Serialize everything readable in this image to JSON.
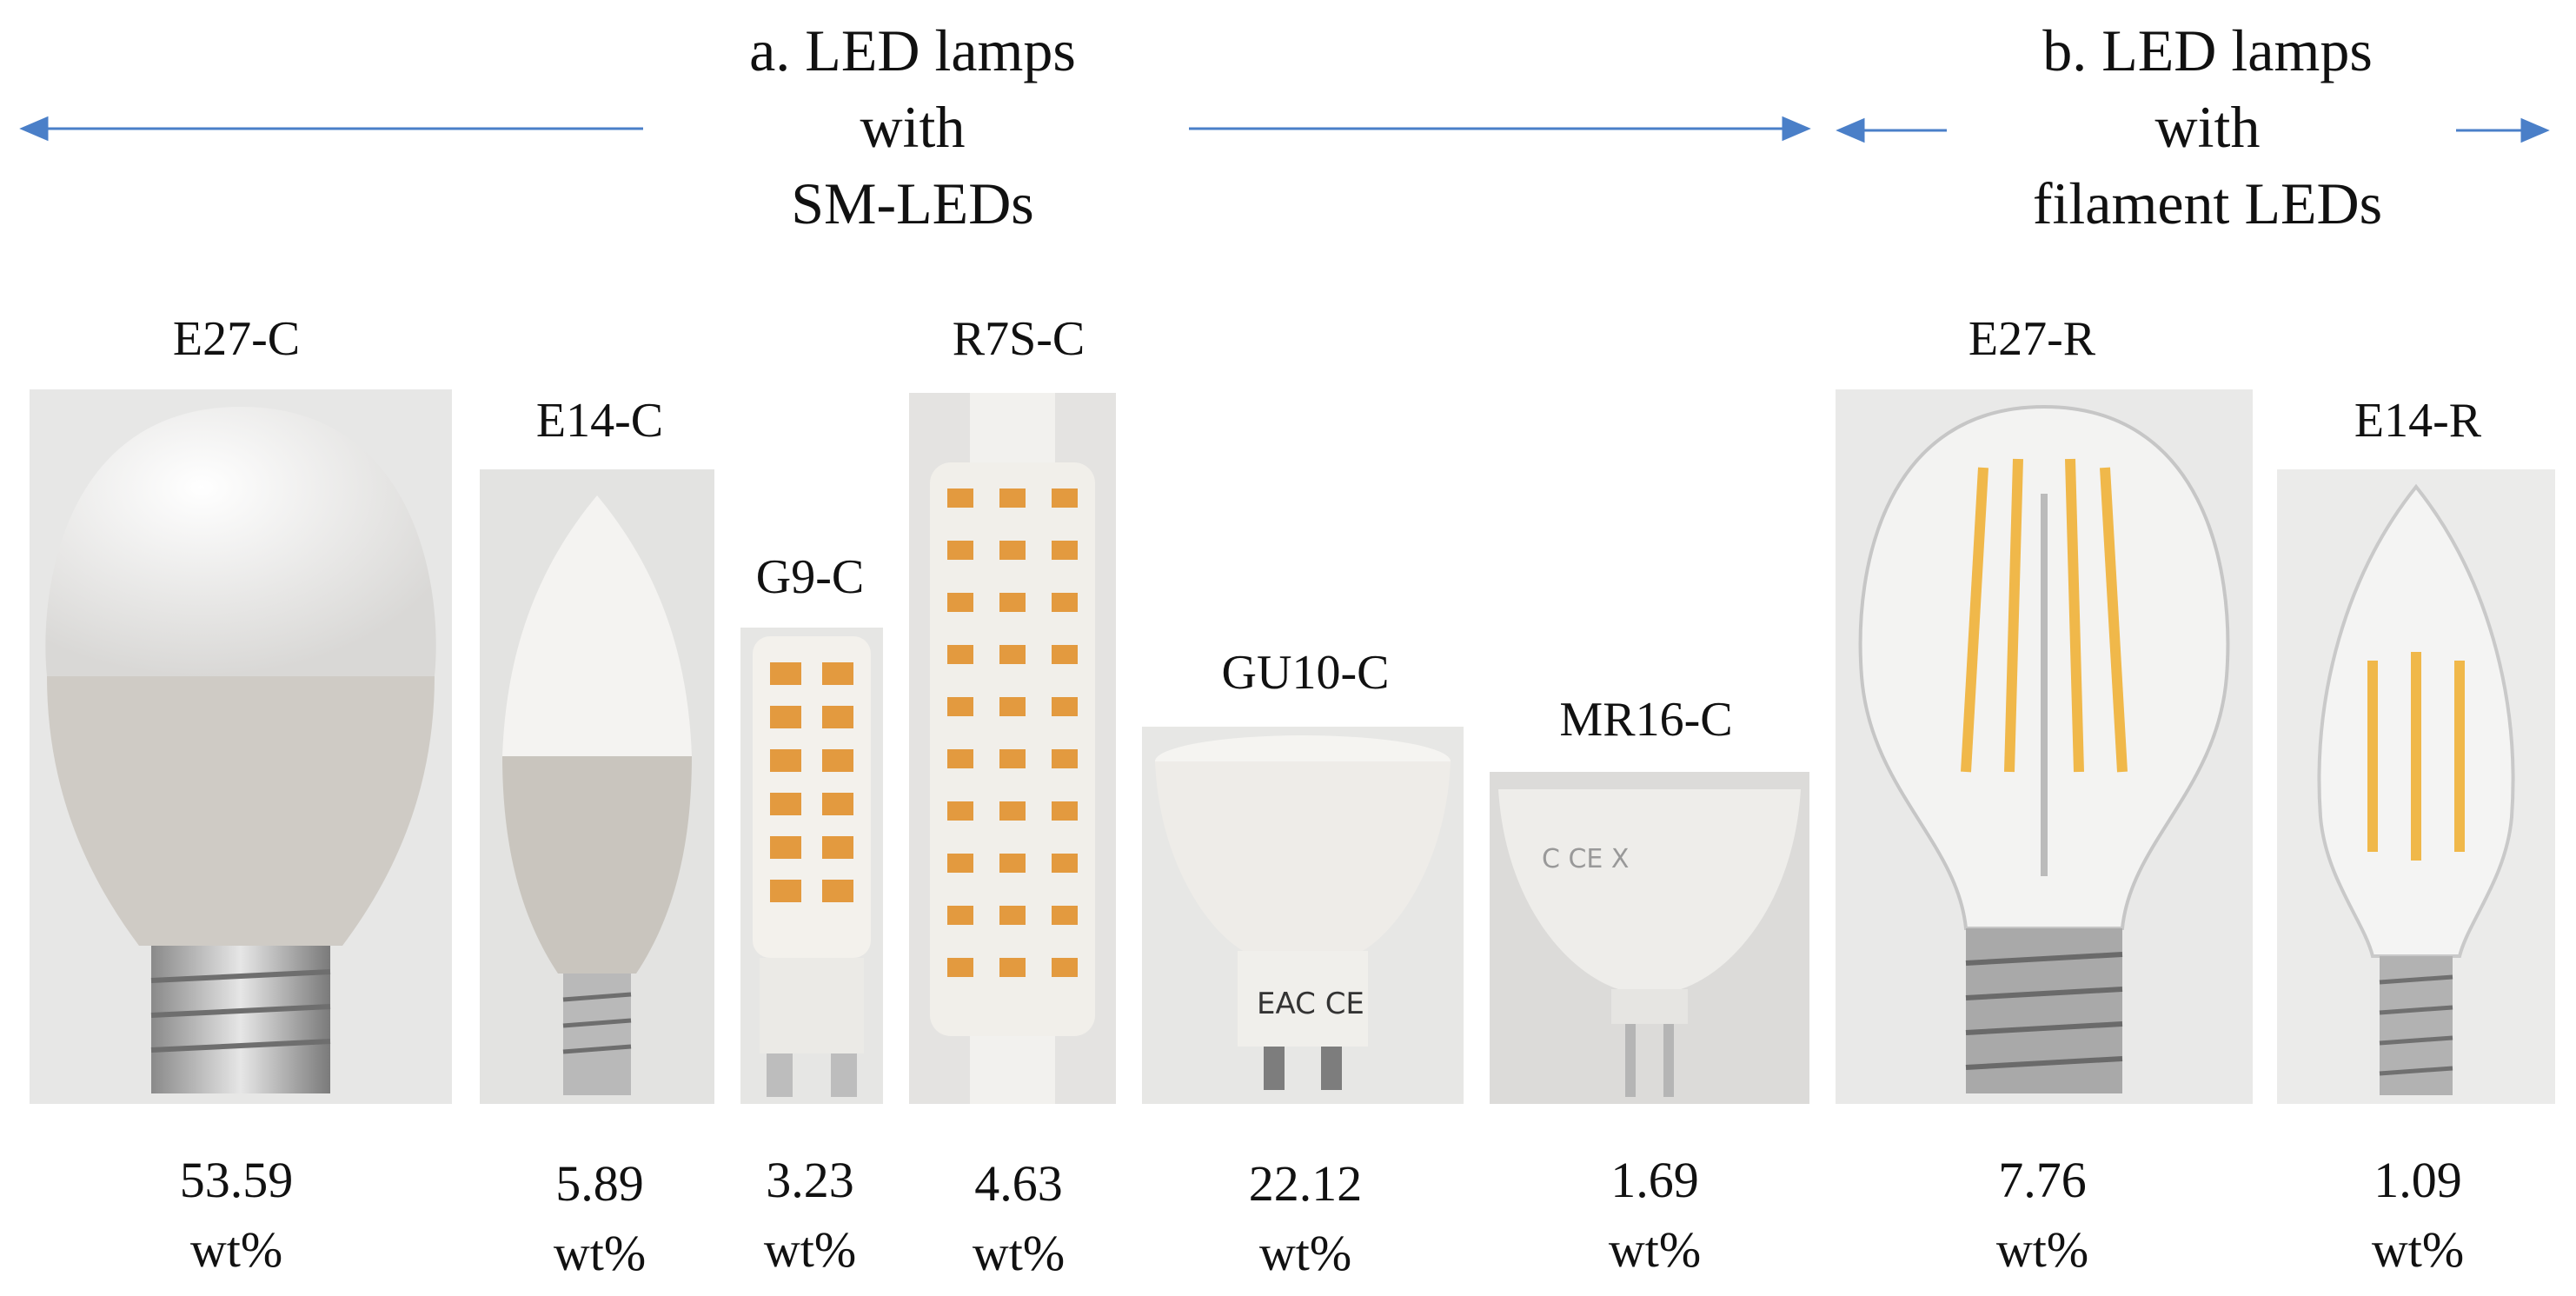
{
  "groups": {
    "a": {
      "line1": "a.   LED lamps",
      "line2": "with",
      "line3": "SM-LEDs"
    },
    "b": {
      "line1": "b. LED lamps",
      "line2": "with",
      "line3": "filament LEDs"
    }
  },
  "colors": {
    "arrow": "#4a7fc8",
    "led_orange": "#e39a3f",
    "filament": "#f0b84a"
  },
  "lamps": [
    {
      "name": "E27-C",
      "value": "53.59",
      "unit": "wt%"
    },
    {
      "name": "E14-C",
      "value": "5.89",
      "unit": "wt%"
    },
    {
      "name": "G9-C",
      "value": "3.23",
      "unit": "wt%"
    },
    {
      "name": "R7S-C",
      "value": "4.63",
      "unit": "wt%"
    },
    {
      "name": "GU10-C",
      "value": "22.12",
      "unit": "wt%"
    },
    {
      "name": "MR16-C",
      "value": "1.69",
      "unit": "wt%"
    },
    {
      "name": "E27-R",
      "value": "7.76",
      "unit": "wt%"
    },
    {
      "name": "E14-R",
      "value": "1.09",
      "unit": "wt%"
    }
  ]
}
